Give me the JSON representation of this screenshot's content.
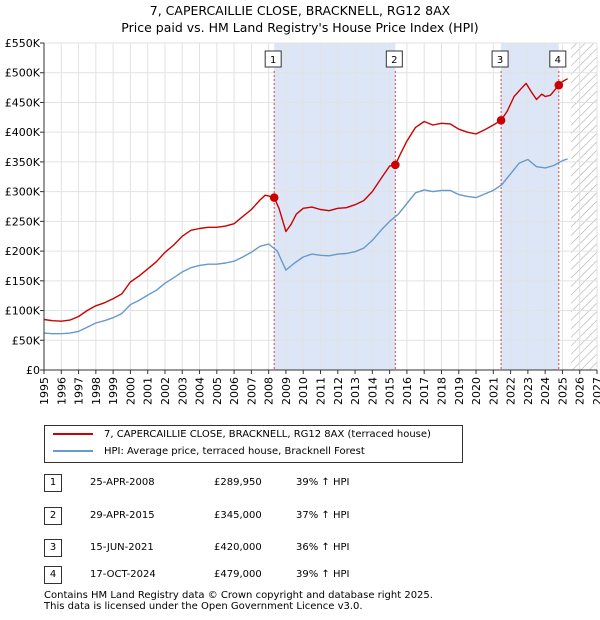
{
  "title_line1": "7, CAPERCAILLIE CLOSE, BRACKNELL, RG12 8AX",
  "title_line2": "Price paid vs. HM Land Registry's House Price Index (HPI)",
  "chart_data": {
    "type": "line",
    "title": "7, CAPERCAILLIE CLOSE, BRACKNELL, RG12 8AX — Price paid vs. HM Land Registry's House Price Index (HPI)",
    "xlim": [
      1995,
      2027
    ],
    "ylim": [
      0,
      550000
    ],
    "y_ticks": [
      0,
      50000,
      100000,
      150000,
      200000,
      250000,
      300000,
      350000,
      400000,
      450000,
      500000,
      550000
    ],
    "y_tick_labels": [
      "£0",
      "£50K",
      "£100K",
      "£150K",
      "£200K",
      "£250K",
      "£300K",
      "£350K",
      "£400K",
      "£450K",
      "£500K",
      "£550K"
    ],
    "x_ticks": [
      1995,
      1996,
      1997,
      1998,
      1999,
      2000,
      2001,
      2002,
      2003,
      2004,
      2005,
      2006,
      2007,
      2008,
      2009,
      2010,
      2011,
      2012,
      2013,
      2014,
      2015,
      2016,
      2017,
      2018,
      2019,
      2020,
      2021,
      2022,
      2023,
      2024,
      2025,
      2026,
      2027
    ],
    "x_tick_labels": [
      "1995",
      "1996",
      "1997",
      "1998",
      "1999",
      "2000",
      "2001",
      "2002",
      "2003",
      "2004",
      "2005",
      "2006",
      "2007",
      "2008",
      "2009",
      "2010",
      "2011",
      "2012",
      "2013",
      "2014",
      "2015",
      "2016",
      "2017",
      "2018",
      "2019",
      "2020",
      "2021",
      "2022",
      "2023",
      "2024",
      "2025",
      "2026",
      "2027"
    ],
    "grid": true,
    "shaded_periods": [
      [
        2008.32,
        2015.33
      ],
      [
        2021.45,
        2024.79
      ]
    ],
    "hatched_from": 2025.5,
    "series": [
      {
        "name": "7, CAPERCAILLIE CLOSE, BRACKNELL, RG12 8AX (terraced house)",
        "color": "#cc0000",
        "x": [
          1995.0,
          1995.5,
          1996.0,
          1996.5,
          1997.0,
          1997.5,
          1998.0,
          1998.5,
          1999.0,
          1999.5,
          2000.0,
          2000.5,
          2001.0,
          2001.5,
          2002.0,
          2002.5,
          2003.0,
          2003.5,
          2004.0,
          2004.5,
          2005.0,
          2005.5,
          2006.0,
          2006.5,
          2007.0,
          2007.5,
          2007.8,
          2008.1,
          2008.32,
          2008.6,
          2009.0,
          2009.3,
          2009.6,
          2010.0,
          2010.5,
          2011.0,
          2011.5,
          2012.0,
          2012.5,
          2013.0,
          2013.5,
          2014.0,
          2014.5,
          2015.0,
          2015.33,
          2015.6,
          2016.0,
          2016.5,
          2017.0,
          2017.5,
          2018.0,
          2018.5,
          2019.0,
          2019.5,
          2020.0,
          2020.5,
          2021.0,
          2021.45,
          2021.8,
          2022.2,
          2022.6,
          2022.9,
          2023.2,
          2023.5,
          2023.8,
          2024.0,
          2024.3,
          2024.79,
          2025.0,
          2025.3
        ],
        "values": [
          85000,
          83000,
          82000,
          84000,
          90000,
          100000,
          108000,
          113000,
          120000,
          128000,
          148000,
          158000,
          170000,
          182000,
          198000,
          210000,
          225000,
          235000,
          238000,
          240000,
          240000,
          242000,
          246000,
          258000,
          270000,
          286000,
          294000,
          292000,
          289950,
          272000,
          233000,
          245000,
          262000,
          272000,
          274000,
          270000,
          268000,
          272000,
          273000,
          278000,
          285000,
          300000,
          322000,
          343000,
          345000,
          362000,
          385000,
          408000,
          418000,
          412000,
          415000,
          414000,
          405000,
          400000,
          397000,
          404000,
          412000,
          420000,
          435000,
          460000,
          473000,
          482000,
          468000,
          455000,
          464000,
          460000,
          462000,
          479000,
          485000,
          490000
        ]
      },
      {
        "name": "HPI: Average price, terraced house, Bracknell Forest",
        "color": "#6699cc",
        "x": [
          1995.0,
          1995.5,
          1996.0,
          1996.5,
          1997.0,
          1997.5,
          1998.0,
          1998.5,
          1999.0,
          1999.5,
          2000.0,
          2000.5,
          2001.0,
          2001.5,
          2002.0,
          2002.5,
          2003.0,
          2003.5,
          2004.0,
          2004.5,
          2005.0,
          2005.5,
          2006.0,
          2006.5,
          2007.0,
          2007.5,
          2008.0,
          2008.5,
          2009.0,
          2009.5,
          2010.0,
          2010.5,
          2011.0,
          2011.5,
          2012.0,
          2012.5,
          2013.0,
          2013.5,
          2014.0,
          2014.5,
          2015.0,
          2015.5,
          2016.0,
          2016.5,
          2017.0,
          2017.5,
          2018.0,
          2018.5,
          2019.0,
          2019.5,
          2020.0,
          2020.5,
          2021.0,
          2021.5,
          2022.0,
          2022.5,
          2023.0,
          2023.5,
          2024.0,
          2024.5,
          2025.0,
          2025.3
        ],
        "values": [
          62000,
          61000,
          61000,
          62000,
          65000,
          72000,
          79000,
          83000,
          88000,
          95000,
          110000,
          117000,
          126000,
          134000,
          146000,
          155000,
          165000,
          172000,
          176000,
          178000,
          178000,
          180000,
          183000,
          190000,
          198000,
          208000,
          212000,
          200000,
          168000,
          180000,
          190000,
          195000,
          193000,
          192000,
          195000,
          196000,
          199000,
          205000,
          218000,
          235000,
          250000,
          262000,
          280000,
          298000,
          303000,
          300000,
          302000,
          302000,
          295000,
          292000,
          290000,
          296000,
          302000,
          312000,
          330000,
          348000,
          354000,
          342000,
          340000,
          344000,
          352000,
          355000
        ]
      }
    ],
    "markers": [
      {
        "label": "1",
        "x": 2008.32,
        "y": 289950
      },
      {
        "label": "2",
        "x": 2015.33,
        "y": 345000
      },
      {
        "label": "3",
        "x": 2021.45,
        "y": 420000
      },
      {
        "label": "4",
        "x": 2024.79,
        "y": 479000
      }
    ]
  },
  "legend": {
    "property": "7, CAPERCAILLIE CLOSE, BRACKNELL, RG12 8AX (terraced house)",
    "hpi": "HPI: Average price, terraced house, Bracknell Forest"
  },
  "sales": [
    {
      "num": "1",
      "date": "25-APR-2008",
      "price": "£289,950",
      "hpi": "39% ↑ HPI"
    },
    {
      "num": "2",
      "date": "29-APR-2015",
      "price": "£345,000",
      "hpi": "37% ↑ HPI"
    },
    {
      "num": "3",
      "date": "15-JUN-2021",
      "price": "£420,000",
      "hpi": "36% ↑ HPI"
    },
    {
      "num": "4",
      "date": "17-OCT-2024",
      "price": "£479,000",
      "hpi": "39% ↑ HPI"
    }
  ],
  "footer_line1": "Contains HM Land Registry data © Crown copyright and database right 2025.",
  "footer_line2": "This data is licensed under the Open Government Licence v3.0."
}
